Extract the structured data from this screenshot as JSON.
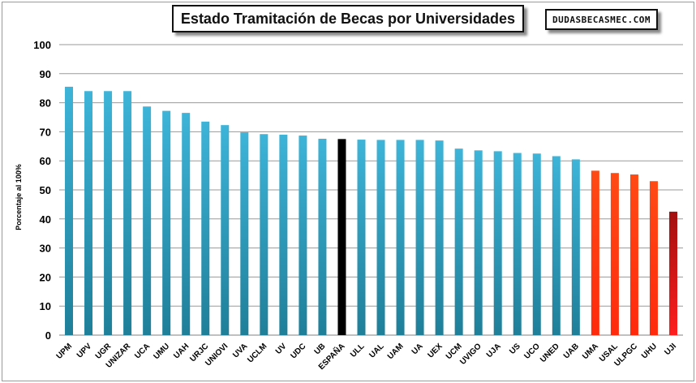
{
  "page": {
    "title": "Estado Tramitación de Becas por Universidades",
    "brand": "DUDASBECASMEC.COM"
  },
  "colors": {
    "blue": "#3aaed2",
    "blue_dark": "#1f7f99",
    "black": "#000000",
    "orange": "#ff3a12",
    "red": "#cc1010",
    "grid": "#9a9a9a"
  },
  "chart_data": {
    "type": "bar",
    "title": "Estado Tramitación de Becas por Universidades",
    "xlabel": "",
    "ylabel": "Porcentaje al 100%",
    "ylim": [
      0,
      100
    ],
    "yticks": [
      0,
      10,
      20,
      30,
      40,
      50,
      60,
      70,
      80,
      90,
      100
    ],
    "grid": true,
    "categories": [
      "UPM",
      "UPV",
      "UGR",
      "UNIZAR",
      "UCA",
      "UMU",
      "UAH",
      "URJC",
      "UNIOVI",
      "UVA",
      "UCLM",
      "UV",
      "UDC",
      "UB",
      "ESPAÑA",
      "ULL",
      "UAL",
      "UAM",
      "UA",
      "UEX",
      "UCM",
      "UVIGO",
      "UJA",
      "US",
      "UCO",
      "UNED",
      "UAB",
      "UMA",
      "USAL",
      "ULPGC",
      "UHU",
      "UJI"
    ],
    "values": [
      85.5,
      84,
      84,
      84,
      78.7,
      77.2,
      76.5,
      73.5,
      72.3,
      69.8,
      69.2,
      69,
      68.7,
      67.6,
      67.5,
      67.3,
      67.2,
      67.2,
      67.2,
      67,
      64.2,
      63.6,
      63.3,
      62.7,
      62.5,
      61.6,
      60.5,
      56.6,
      55.8,
      55.3,
      53,
      42.5
    ],
    "bar_colors": [
      "blue",
      "blue",
      "blue",
      "blue",
      "blue",
      "blue",
      "blue",
      "blue",
      "blue",
      "blue",
      "blue",
      "blue",
      "blue",
      "blue",
      "black",
      "blue",
      "blue",
      "blue",
      "blue",
      "blue",
      "blue",
      "blue",
      "blue",
      "blue",
      "blue",
      "blue",
      "blue",
      "orange",
      "orange",
      "orange",
      "orange",
      "red"
    ]
  }
}
